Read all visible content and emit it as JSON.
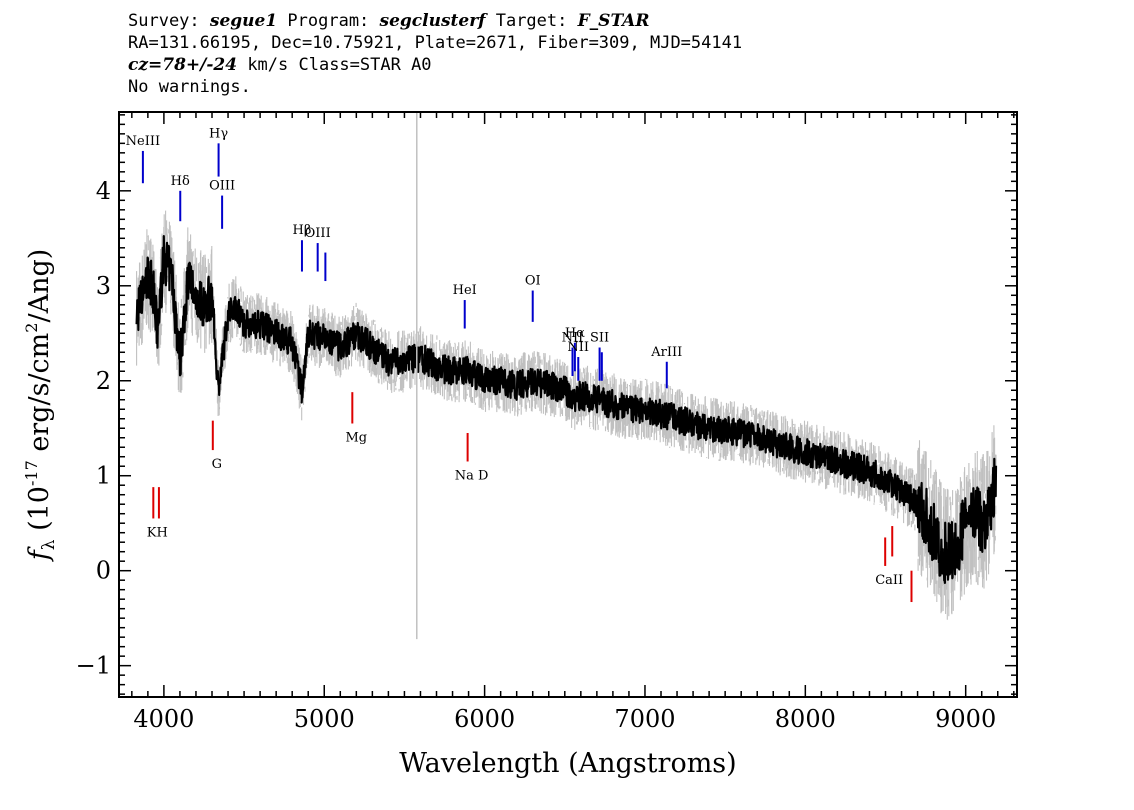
{
  "header": {
    "line1": {
      "survey_label": "Survey: ",
      "survey": "segue1",
      "program_label": " Program: ",
      "program": "segclusterf",
      "target_label": " Target: ",
      "target": "F_STAR"
    },
    "line2": "RA=131.66195, Dec=10.75921, Plate=2671, Fiber=309, MJD=54141",
    "line3": {
      "cz": "cz=78+/-24",
      "rest": " km/s Class=STAR A0"
    },
    "line4": "No warnings."
  },
  "chart_data": {
    "type": "line",
    "xlabel": "Wavelength (Angstroms)",
    "ylabel_parts": {
      "f": "f",
      "lambda": "λ",
      "open": " (10",
      "exp": "-17",
      "units": " erg/s/cm",
      "sq": "2",
      "close": "/Ang)"
    },
    "xlim": [
      3720,
      9320
    ],
    "ylim": [
      -1.33,
      4.83
    ],
    "x_ticks": [
      4000,
      5000,
      6000,
      7000,
      8000,
      9000
    ],
    "y_ticks": [
      -1,
      0,
      1,
      2,
      3,
      4
    ],
    "grid": false,
    "colors": {
      "flux": "#000000",
      "noise": "#c0c0c0",
      "emission": "#0000cc",
      "absorption": "#dd0000"
    },
    "series": [
      {
        "role": "flux",
        "x": [
          3830,
          3870,
          3900,
          3930,
          3960,
          4000,
          4050,
          4100,
          4150,
          4200,
          4250,
          4300,
          4340,
          4400,
          4450,
          4500,
          4600,
          4700,
          4800,
          4860,
          4900,
          5000,
          5100,
          5200,
          5300,
          5400,
          5500,
          5600,
          5700,
          5800,
          5900,
          6000,
          6100,
          6200,
          6300,
          6400,
          6500,
          6563,
          6600,
          6700,
          6800,
          6900,
          7000,
          7200,
          7400,
          7600,
          7800,
          8000,
          8200,
          8400,
          8500,
          8600,
          8700,
          8800,
          8850,
          8900,
          8950,
          9000,
          9050,
          9100,
          9150,
          9190
        ],
        "y": [
          2.7,
          2.9,
          3.1,
          3.0,
          2.5,
          3.3,
          3.1,
          2.2,
          3.1,
          2.9,
          2.8,
          2.9,
          1.9,
          2.7,
          2.8,
          2.6,
          2.6,
          2.5,
          2.4,
          1.9,
          2.5,
          2.45,
          2.35,
          2.5,
          2.35,
          2.2,
          2.2,
          2.25,
          2.15,
          2.1,
          2.1,
          2.0,
          2.0,
          1.95,
          2.0,
          1.95,
          1.9,
          1.8,
          1.85,
          1.8,
          1.75,
          1.7,
          1.7,
          1.6,
          1.5,
          1.45,
          1.35,
          1.25,
          1.15,
          1.05,
          0.95,
          0.85,
          0.7,
          0.4,
          0.2,
          0.2,
          0.3,
          0.5,
          0.6,
          0.5,
          0.6,
          1.0
        ]
      }
    ],
    "emission_lines": [
      {
        "label": "NeIII",
        "x": 3869,
        "y_low": 4.08,
        "y_high": 4.42
      },
      {
        "label": "Hδ",
        "x": 4102,
        "y_low": 3.68,
        "y_high": 4.0
      },
      {
        "label": "Hγ",
        "x": 4341,
        "y_low": 4.15,
        "y_high": 4.5
      },
      {
        "label": "OIII",
        "x": 4363,
        "y_low": 3.6,
        "y_high": 3.95
      },
      {
        "label": "Hβ",
        "x": 4861,
        "y_low": 3.15,
        "y_high": 3.48
      },
      {
        "label": "OIII",
        "x": 4959,
        "y_low": 3.15,
        "y_high": 3.45
      },
      {
        "label": "",
        "x": 5007,
        "y_low": 3.05,
        "y_high": 3.35
      },
      {
        "label": "HeI",
        "x": 5876,
        "y_low": 2.55,
        "y_high": 2.85
      },
      {
        "label": "OI",
        "x": 6300,
        "y_low": 2.62,
        "y_high": 2.95
      },
      {
        "label": "NII",
        "x": 6548,
        "y_low": 2.05,
        "y_high": 2.35
      },
      {
        "label": "Hα",
        "x": 6563,
        "y_low": 2.1,
        "y_high": 2.4
      },
      {
        "label": "NII",
        "x": 6584,
        "y_low": 2.0,
        "y_high": 2.25
      },
      {
        "label": "SII",
        "x": 6717,
        "y_low": 2.0,
        "y_high": 2.35
      },
      {
        "label": "",
        "x": 6731,
        "y_low": 2.0,
        "y_high": 2.3
      },
      {
        "label": "ArIII",
        "x": 7136,
        "y_low": 1.92,
        "y_high": 2.2
      }
    ],
    "absorption_lines": [
      {
        "label": "KH",
        "x": 3934,
        "y_low": 0.55,
        "y_high": 0.88
      },
      {
        "label": "",
        "x": 3969,
        "y_low": 0.55,
        "y_high": 0.88
      },
      {
        "label": "G",
        "x": 4305,
        "y_low": 1.27,
        "y_high": 1.58
      },
      {
        "label": "Mg",
        "x": 5175,
        "y_low": 1.55,
        "y_high": 1.88
      },
      {
        "label": "Na D",
        "x": 5894,
        "y_low": 1.15,
        "y_high": 1.45
      },
      {
        "label": "CaII",
        "x": 8498,
        "y_low": 0.05,
        "y_high": 0.35
      },
      {
        "label": "",
        "x": 8542,
        "y_low": 0.15,
        "y_high": 0.47
      },
      {
        "label": "",
        "x": 8662,
        "y_low": -0.33,
        "y_high": 0.0
      }
    ],
    "marker_line": {
      "x": 5577,
      "y_low": -0.72,
      "y_high": 4.83
    }
  }
}
